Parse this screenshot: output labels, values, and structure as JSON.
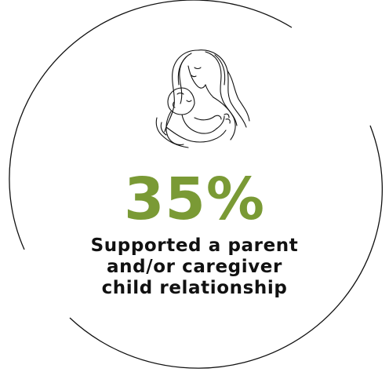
{
  "infographic": {
    "illustration": "mother-and-baby-line-art",
    "stat": {
      "value": "35%",
      "caption_lines": [
        "Supported a parent",
        "and/or caregiver",
        "child relationship"
      ]
    },
    "colors": {
      "accent": "#7a9a35",
      "text": "#111111",
      "ring": "#111111",
      "background": "#ffffff"
    }
  }
}
